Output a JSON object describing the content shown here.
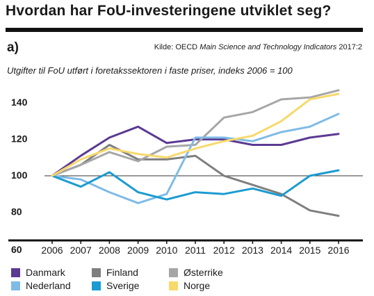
{
  "header": {
    "title": "Hvordan har FoU-investeringene utviklet seg?",
    "panel_label": "a)",
    "source_prefix": "Kilde: OECD ",
    "source_italic": "Main Science and Technology Indicators",
    "source_suffix": " 2017:2"
  },
  "chart_data": {
    "type": "line",
    "title": "",
    "subtitle": "Utgifter til FoU utført i foretakssektoren i faste priser, indeks 2006 = 100",
    "x": [
      "2006",
      "2007",
      "2008",
      "2009",
      "2010",
      "2011",
      "2012",
      "2013",
      "2014",
      "2015",
      "2016"
    ],
    "y_ticks": [
      "60",
      "80",
      "100",
      "120",
      "140"
    ],
    "ylim": [
      60,
      150
    ],
    "reference_line": 100,
    "grid": false,
    "legend_position": "bottom",
    "series": [
      {
        "name": "Danmark",
        "color": "#5b3a92",
        "values": [
          100,
          111,
          121,
          127,
          118,
          120,
          120,
          117,
          117,
          121,
          123
        ]
      },
      {
        "name": "Finland",
        "color": "#7f7f7f",
        "values": [
          100,
          106,
          117,
          109,
          109,
          111,
          100,
          95,
          90,
          81,
          78
        ]
      },
      {
        "name": "Østerrike",
        "color": "#a6a6a6",
        "values": [
          100,
          106,
          113,
          108,
          116,
          117,
          132,
          135,
          142,
          143,
          147
        ]
      },
      {
        "name": "Nederland",
        "color": "#7fbbe6",
        "values": [
          100,
          98,
          91,
          85,
          90,
          121,
          121,
          119,
          124,
          127,
          134
        ]
      },
      {
        "name": "Sverige",
        "color": "#1b9bd1",
        "values": [
          100,
          94,
          102,
          91,
          87,
          91,
          90,
          93,
          89,
          100,
          103
        ]
      },
      {
        "name": "Norge",
        "color": "#f7d96b",
        "values": [
          100,
          109,
          115,
          112,
          110,
          115,
          119,
          122,
          130,
          142,
          145
        ]
      }
    ]
  }
}
